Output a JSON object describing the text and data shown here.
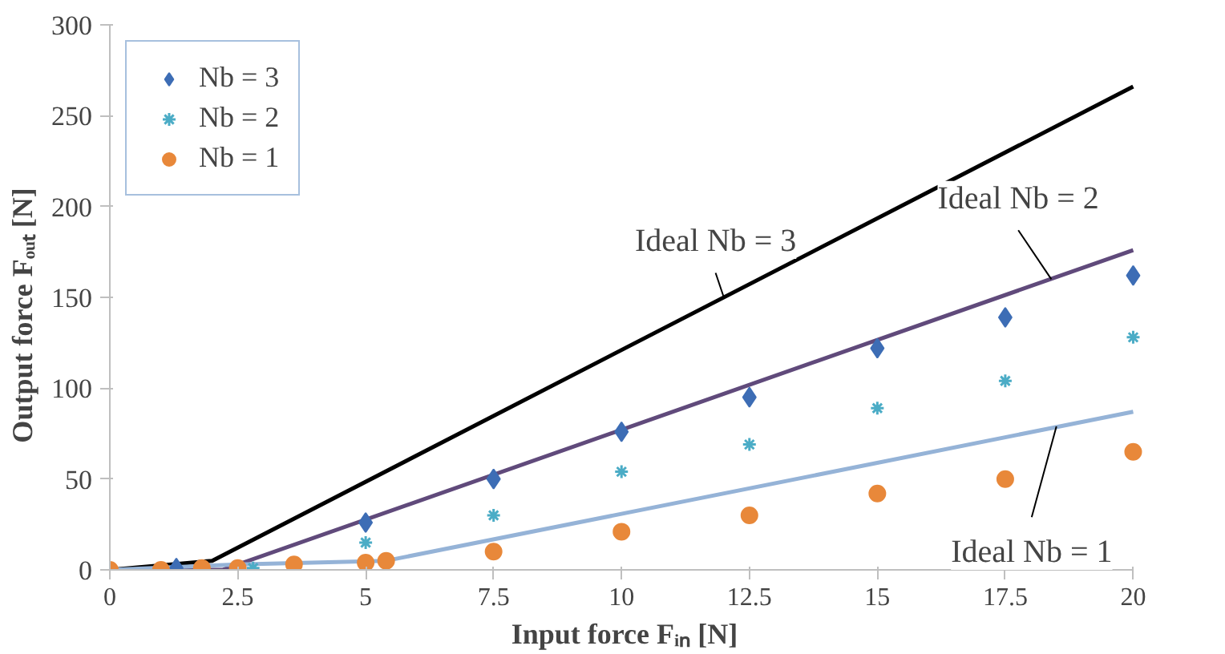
{
  "chart_data": {
    "type": "scatter",
    "xlabel": "Input force Fᵢₙ   [N]",
    "ylabel": "Output force    Fₒᵤₜ   [N]",
    "xlim": [
      0,
      20
    ],
    "ylim": [
      0,
      300
    ],
    "xticks": [
      0,
      2.5,
      5,
      7.5,
      10,
      12.5,
      15,
      17.5,
      20
    ],
    "yticks": [
      0,
      50,
      100,
      150,
      200,
      250,
      300
    ],
    "grid": false,
    "legend": "top left",
    "series": [
      {
        "name": "Nb = 3",
        "marker": "diamond",
        "color": "#3d6db5",
        "x": [
          1.3,
          5,
          7.5,
          10,
          12.5,
          15,
          17.5,
          20
        ],
        "values": [
          1,
          26,
          50,
          76,
          95,
          122,
          139,
          162
        ]
      },
      {
        "name": "Nb = 2",
        "marker": "cross",
        "color": "#4bacc6",
        "x": [
          2.8,
          5,
          7.5,
          10,
          12.5,
          15,
          17.5,
          20
        ],
        "values": [
          1,
          15,
          30,
          54,
          69,
          89,
          104,
          128
        ]
      },
      {
        "name": "Nb = 1",
        "marker": "circle",
        "color": "#e8883a",
        "x": [
          0,
          1,
          1.8,
          2.5,
          3.6,
          5,
          5.4,
          7.5,
          10,
          12.5,
          15,
          17.5,
          20
        ],
        "values": [
          0,
          0,
          1,
          1,
          3,
          4,
          5,
          10,
          21,
          30,
          42,
          50,
          65
        ]
      },
      {
        "type": "line",
        "color": "#000000",
        "x": [
          0,
          2,
          20
        ],
        "values": [
          0,
          5,
          266
        ]
      },
      {
        "type": "line",
        "color": "#604a7b",
        "x": [
          0,
          2.2,
          20
        ],
        "values": [
          0,
          0,
          176
        ]
      },
      {
        "type": "line",
        "color": "#95b3d7",
        "x": [
          0,
          2.5,
          5.4,
          20
        ],
        "values": [
          0,
          3,
          5,
          87
        ]
      }
    ],
    "annotations": [
      {
        "text": "Ideal Nb = 3",
        "x": 12,
        "y": 150
      },
      {
        "text": "Ideal Nb = 2",
        "x": 18.4,
        "y": 160
      },
      {
        "text": "Ideal Nb = 1",
        "x": 18.5,
        "y": 79
      }
    ]
  }
}
